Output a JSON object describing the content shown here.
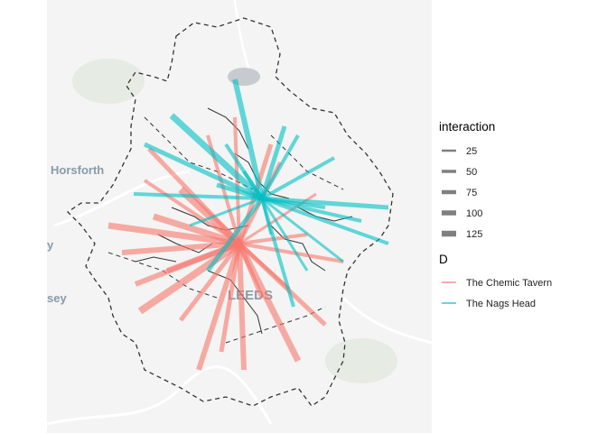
{
  "basemap": {
    "labels": [
      {
        "id": "horsforth",
        "text": "Horsforth"
      },
      {
        "id": "leeds",
        "text": "LEEDS"
      },
      {
        "id": "y",
        "text": "y"
      },
      {
        "id": "sey",
        "text": "sey"
      }
    ]
  },
  "legend": {
    "size_title": "interaction",
    "size_items": [
      {
        "label": "25",
        "value": 25
      },
      {
        "label": "50",
        "value": 50
      },
      {
        "label": "75",
        "value": 75
      },
      {
        "label": "100",
        "value": 100
      },
      {
        "label": "125",
        "value": 125
      }
    ],
    "color_title": "D",
    "color_items": [
      {
        "label": "The Chemic Tavern",
        "color": "#f8766d"
      },
      {
        "label": "The Nags Head",
        "color": "#00bfc4"
      }
    ]
  },
  "colors": {
    "chemic": "#f8766d",
    "nags": "#00bfc4",
    "boundary": "#333333",
    "background": "#f3f4f3"
  }
}
